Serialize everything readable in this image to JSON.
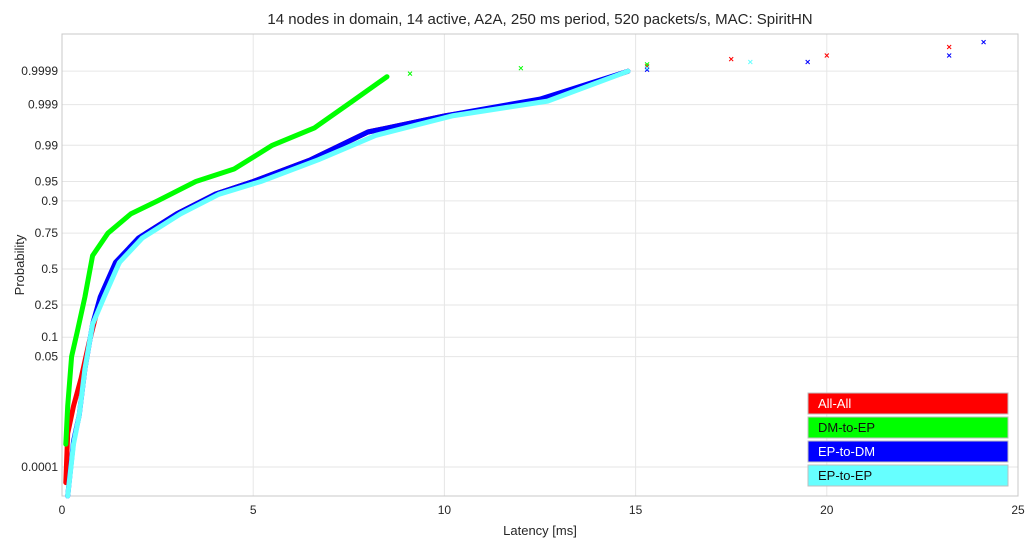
{
  "chart_data": {
    "type": "line",
    "title": "14 nodes in domain, 14 active, A2A, 250 ms period, 520 packets/s, MAC: SpiritHN",
    "xlabel": "Latency [ms]",
    "ylabel": "Probability",
    "xlim": [
      0,
      25
    ],
    "y_scale": "normal-probability",
    "x_ticks": [
      0,
      5,
      10,
      15,
      20,
      25
    ],
    "y_ticks": [
      {
        "p": 0.0001,
        "label": "0.0001"
      },
      {
        "p": 0.05,
        "label": "0.05"
      },
      {
        "p": 0.1,
        "label": "0.1"
      },
      {
        "p": 0.25,
        "label": "0.25"
      },
      {
        "p": 0.5,
        "label": "0.5"
      },
      {
        "p": 0.75,
        "label": "0.75"
      },
      {
        "p": 0.9,
        "label": "0.9"
      },
      {
        "p": 0.95,
        "label": "0.95"
      },
      {
        "p": 0.99,
        "label": "0.99"
      },
      {
        "p": 0.999,
        "label": "0.999"
      },
      {
        "p": 0.9999,
        "label": "0.9999"
      }
    ],
    "grid": true,
    "legend_position": "bottom-right",
    "series": [
      {
        "name": "All-All",
        "color": "#ff0000",
        "points": [
          [
            0.1,
            3e-05
          ],
          [
            0.15,
            0.001
          ],
          [
            0.3,
            0.005
          ],
          [
            0.5,
            0.02
          ],
          [
            0.7,
            0.08
          ],
          [
            0.9,
            0.2
          ],
          [
            1.2,
            0.4
          ],
          [
            1.6,
            0.6
          ],
          [
            2.2,
            0.75
          ],
          [
            3.0,
            0.85
          ],
          [
            4.0,
            0.92
          ],
          [
            5.0,
            0.95
          ],
          [
            6.5,
            0.98
          ],
          [
            8.0,
            0.995
          ],
          [
            10.0,
            0.998
          ],
          [
            12.5,
            0.9992
          ],
          [
            14.8,
            0.9999
          ]
        ],
        "tail": [
          [
            15.3,
            0.99993
          ],
          [
            17.5,
            0.99996
          ],
          [
            20.0,
            0.99997
          ],
          [
            23.2,
            0.999985
          ]
        ]
      },
      {
        "name": "DM-to-EP",
        "color": "#00ff00",
        "points": [
          [
            0.1,
            0.0005
          ],
          [
            0.15,
            0.005
          ],
          [
            0.25,
            0.05
          ],
          [
            0.4,
            0.12
          ],
          [
            0.6,
            0.3
          ],
          [
            0.8,
            0.6
          ],
          [
            1.2,
            0.75
          ],
          [
            1.8,
            0.85
          ],
          [
            2.5,
            0.9
          ],
          [
            3.5,
            0.95
          ],
          [
            4.5,
            0.97
          ],
          [
            5.5,
            0.99
          ],
          [
            6.6,
            0.996
          ],
          [
            7.6,
            0.9992
          ],
          [
            8.5,
            0.99985
          ]
        ],
        "tail": [
          [
            9.1,
            0.99988
          ],
          [
            12.0,
            0.99992
          ],
          [
            15.3,
            0.99994
          ]
        ]
      },
      {
        "name": "EP-to-DM",
        "color": "#0000ff",
        "points": [
          [
            0.15,
            1e-05
          ],
          [
            0.3,
            0.0006
          ],
          [
            0.45,
            0.003
          ],
          [
            0.6,
            0.03
          ],
          [
            0.8,
            0.15
          ],
          [
            1.0,
            0.3
          ],
          [
            1.4,
            0.55
          ],
          [
            2.0,
            0.72
          ],
          [
            3.0,
            0.85
          ],
          [
            4.0,
            0.92
          ],
          [
            5.0,
            0.95
          ],
          [
            6.5,
            0.98
          ],
          [
            8.0,
            0.995
          ],
          [
            10.0,
            0.998
          ],
          [
            12.5,
            0.9993
          ],
          [
            14.8,
            0.9999
          ]
        ],
        "tail": [
          [
            15.3,
            0.99991
          ],
          [
            19.5,
            0.99995
          ],
          [
            23.2,
            0.99997
          ],
          [
            24.1,
            0.99999
          ]
        ]
      },
      {
        "name": "EP-to-EP",
        "color": "#66ffff",
        "points": [
          [
            0.15,
            1e-05
          ],
          [
            0.3,
            0.0005
          ],
          [
            0.45,
            0.003
          ],
          [
            0.6,
            0.03
          ],
          [
            0.8,
            0.15
          ],
          [
            1.1,
            0.3
          ],
          [
            1.5,
            0.55
          ],
          [
            2.1,
            0.72
          ],
          [
            3.1,
            0.85
          ],
          [
            4.1,
            0.92
          ],
          [
            5.2,
            0.95
          ],
          [
            6.7,
            0.98
          ],
          [
            8.2,
            0.994
          ],
          [
            10.2,
            0.998
          ],
          [
            12.7,
            0.9992
          ],
          [
            14.8,
            0.9999
          ]
        ],
        "tail": [
          [
            15.3,
            0.99992
          ],
          [
            18.0,
            0.99995
          ]
        ]
      }
    ]
  }
}
